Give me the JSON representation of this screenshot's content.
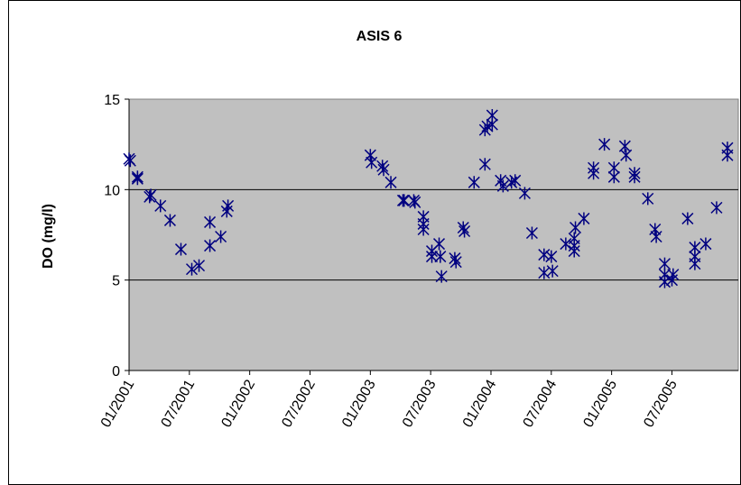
{
  "chart_data": {
    "type": "scatter",
    "title": "ASIS 6",
    "y_label": "DO (mg/l)",
    "color": "#000080",
    "marker": "asterisk",
    "grid": true,
    "x": [
      2001.0,
      2001.01,
      2001.07,
      2001.07,
      2001.17,
      2001.18,
      2001.26,
      2001.34,
      2001.43,
      2001.52,
      2001.58,
      2001.67,
      2001.67,
      2001.76,
      2001.82,
      2001.81,
      2003.0,
      2003.01,
      2003.1,
      2003.11,
      2003.17,
      2003.27,
      2003.28,
      2003.36,
      2003.37,
      2003.44,
      2003.44,
      2003.44,
      2003.51,
      2003.51,
      2003.57,
      2003.58,
      2003.59,
      2003.7,
      2003.71,
      2003.77,
      2003.78,
      2003.86,
      2003.95,
      2003.95,
      2003.97,
      2004.01,
      2004.01,
      2004.08,
      2004.1,
      2004.17,
      2004.2,
      2004.28,
      2004.34,
      2004.44,
      2004.44,
      2004.5,
      2004.51,
      2004.62,
      2004.69,
      2004.69,
      2004.69,
      2004.7,
      2004.77,
      2004.85,
      2004.85,
      2004.94,
      2005.02,
      2005.02,
      2005.11,
      2005.12,
      2005.19,
      2005.19,
      2005.3,
      2005.36,
      2005.37,
      2005.44,
      2005.44,
      2005.44,
      2005.51,
      2005.5,
      2005.63,
      2005.69,
      2005.69,
      2005.69,
      2005.78,
      2005.87,
      2005.96,
      2005.96
    ],
    "values": [
      11.7,
      11.6,
      10.6,
      10.7,
      9.6,
      9.7,
      9.1,
      8.3,
      6.7,
      5.6,
      5.8,
      8.2,
      6.9,
      7.4,
      9.1,
      8.8,
      11.9,
      11.5,
      11.3,
      11.1,
      10.4,
      9.4,
      9.4,
      9.4,
      9.3,
      8.5,
      8.1,
      7.8,
      6.6,
      6.3,
      7.0,
      6.3,
      5.2,
      6.2,
      6.0,
      7.9,
      7.7,
      10.4,
      11.4,
      13.3,
      13.5,
      14.1,
      13.6,
      10.5,
      10.2,
      10.4,
      10.5,
      9.8,
      7.6,
      6.4,
      5.4,
      6.3,
      5.5,
      7.0,
      7.3,
      6.6,
      6.9,
      7.9,
      8.4,
      11.2,
      10.9,
      12.5,
      11.2,
      10.7,
      12.4,
      11.9,
      10.9,
      10.7,
      9.5,
      7.8,
      7.4,
      5.9,
      5.3,
      4.9,
      5.3,
      5.0,
      8.4,
      6.8,
      5.9,
      6.3,
      7.0,
      9.0,
      12.3,
      11.9
    ],
    "xlim": [
      2001,
      2006.05
    ],
    "xticks": [
      {
        "value": 2001,
        "label": "01/2001"
      },
      {
        "value": 2001.5,
        "label": "07/2001"
      },
      {
        "value": 2002,
        "label": "01/2002"
      },
      {
        "value": 2002.5,
        "label": "07/2002"
      },
      {
        "value": 2003,
        "label": "01/2003"
      },
      {
        "value": 2003.5,
        "label": "07/2003"
      },
      {
        "value": 2004,
        "label": "01/2004"
      },
      {
        "value": 2004.5,
        "label": "07/2004"
      },
      {
        "value": 2005,
        "label": "01/2005"
      },
      {
        "value": 2005.5,
        "label": "07/2005"
      }
    ],
    "ylim": [
      0,
      15
    ],
    "yticks": [
      0,
      5,
      10,
      15
    ]
  }
}
